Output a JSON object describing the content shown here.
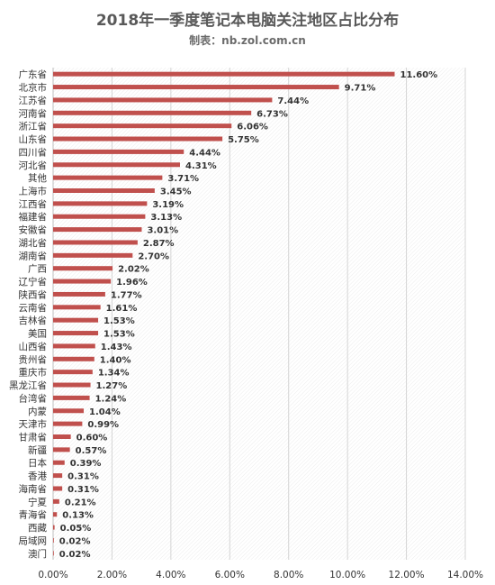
{
  "chart_data": {
    "type": "bar",
    "orientation": "horizontal",
    "title": "2018年一季度笔记本电脑关注地区占比分布",
    "subtitle": "制表：nb.zol.com.cn",
    "categories": [
      "广东省",
      "北京市",
      "江苏省",
      "河南省",
      "浙江省",
      "山东省",
      "四川省",
      "河北省",
      "其他",
      "上海市",
      "江西省",
      "福建省",
      "安徽省",
      "湖北省",
      "湖南省",
      "广西",
      "辽宁省",
      "陕西省",
      "云南省",
      "吉林省",
      "美国",
      "山西省",
      "贵州省",
      "重庆市",
      "黑龙江省",
      "台湾省",
      "内蒙",
      "天津市",
      "甘肃省",
      "新疆",
      "日本",
      "香港",
      "海南省",
      "宁夏",
      "青海省",
      "西藏",
      "局域网",
      "澳门"
    ],
    "values": [
      11.6,
      9.71,
      7.44,
      6.73,
      6.06,
      5.75,
      4.44,
      4.31,
      3.71,
      3.45,
      3.19,
      3.13,
      3.01,
      2.87,
      2.7,
      2.02,
      1.96,
      1.77,
      1.61,
      1.53,
      1.53,
      1.43,
      1.4,
      1.34,
      1.27,
      1.24,
      1.04,
      0.99,
      0.6,
      0.57,
      0.39,
      0.31,
      0.31,
      0.21,
      0.13,
      0.05,
      0.02,
      0.02
    ],
    "value_labels": [
      "11.60%",
      "9.71%",
      "7.44%",
      "6.73%",
      "6.06%",
      "5.75%",
      "4.44%",
      "4.31%",
      "3.71%",
      "3.45%",
      "3.19%",
      "3.13%",
      "3.01%",
      "2.87%",
      "2.70%",
      "2.02%",
      "1.96%",
      "1.77%",
      "1.61%",
      "1.53%",
      "1.53%",
      "1.43%",
      "1.40%",
      "1.34%",
      "1.27%",
      "1.24%",
      "1.04%",
      "0.99%",
      "0.60%",
      "0.57%",
      "0.39%",
      "0.31%",
      "0.31%",
      "0.21%",
      "0.13%",
      "0.05%",
      "0.02%",
      "0.02%"
    ],
    "x_ticks": [
      "0.00%",
      "2.00%",
      "4.00%",
      "6.00%",
      "8.00%",
      "10.00%",
      "12.00%",
      "14.00%"
    ],
    "xlim": [
      0,
      14
    ],
    "unit": "%",
    "grid": true,
    "bar_color": "#c0504d"
  }
}
